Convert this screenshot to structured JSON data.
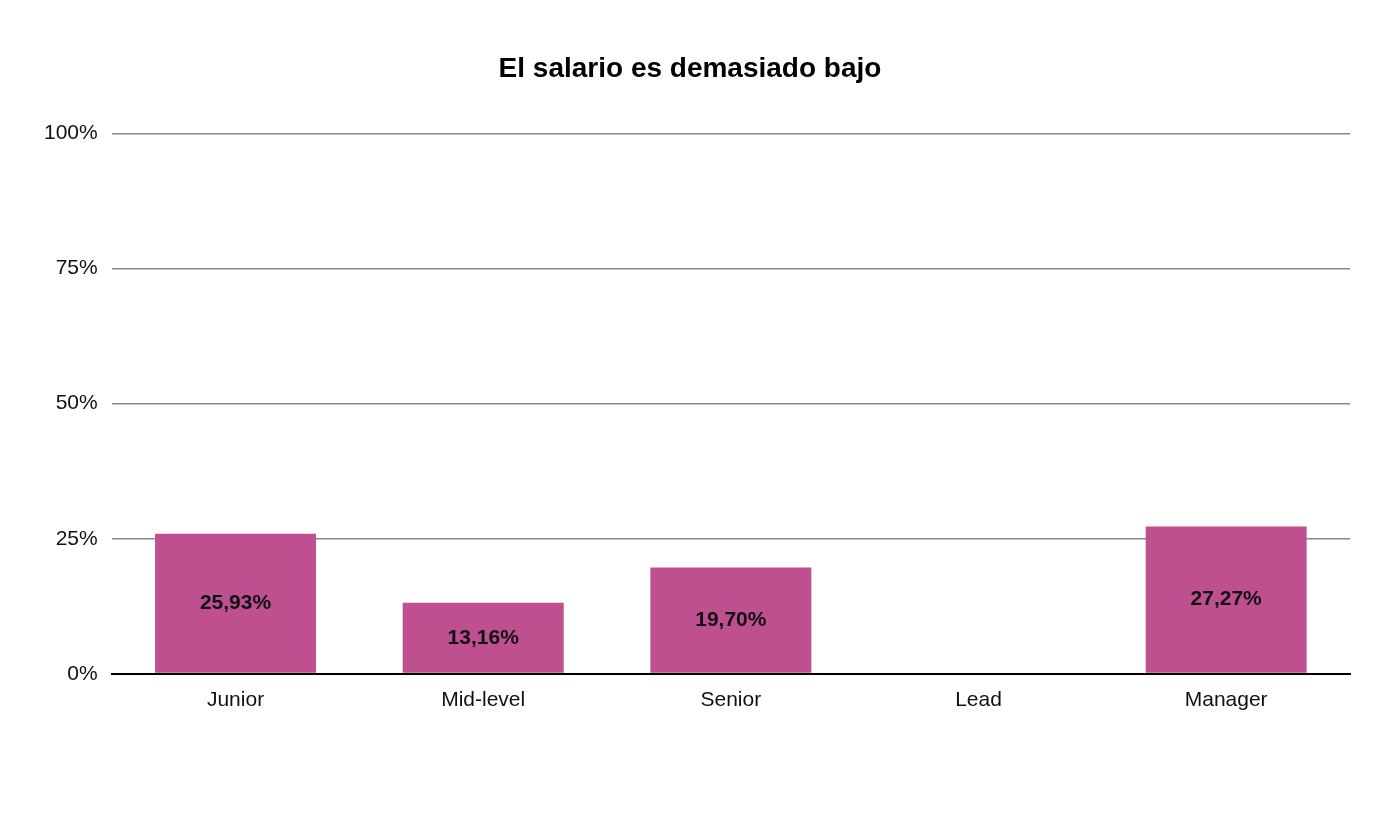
{
  "chart_data": {
    "type": "bar",
    "title": "El salario es demasiado bajo",
    "categories": [
      "Junior",
      "Mid-level",
      "Senior",
      "Lead",
      "Manager"
    ],
    "values": [
      25.93,
      13.16,
      19.7,
      null,
      27.27
    ],
    "value_labels": [
      "25,93%",
      "13,16%",
      "19,70%",
      null,
      "27,27%"
    ],
    "color": "#be5090",
    "ylim": [
      0,
      100
    ],
    "yticks": [
      {
        "value": 0,
        "label": "0%"
      },
      {
        "value": 25,
        "label": "25%"
      },
      {
        "value": 50,
        "label": "50%"
      },
      {
        "value": 75,
        "label": "75%"
      },
      {
        "value": 100,
        "label": "100%"
      }
    ],
    "grid": true,
    "data_labels": true,
    "legend": null
  }
}
